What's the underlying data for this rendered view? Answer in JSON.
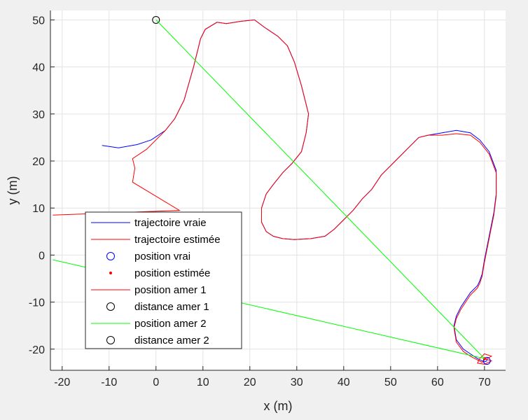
{
  "chart_data": {
    "type": "line",
    "title": "",
    "xlabel": "x (m)",
    "ylabel": "y (m)",
    "xlim": [
      -22.5,
      74.5
    ],
    "ylim": [
      -24.5,
      52
    ],
    "xticks": [
      -20,
      -10,
      0,
      10,
      20,
      30,
      40,
      50,
      60,
      70
    ],
    "yticks": [
      -20,
      -10,
      0,
      10,
      20,
      30,
      40,
      50
    ],
    "grid": true,
    "legend_position": "bottom-left",
    "colors": {
      "true_trajectory": "#0000ff",
      "estimated_trajectory": "#ff0000",
      "landmark_line": "#00ff00",
      "landmark_marker": "#000000",
      "grid": "#e3e3e3",
      "axes_background": "#ffffff",
      "figure_background": "#f0f0f0"
    },
    "series": [
      {
        "name": "trajectoire vraie",
        "kind": "line",
        "color": "#0000ff",
        "x": [
          -11.5,
          -8,
          -4,
          -1,
          2,
          4,
          6,
          7,
          8,
          9,
          9.5,
          10.5,
          13,
          15,
          18,
          21,
          23,
          26,
          28,
          29.5,
          31,
          32.5,
          32,
          31,
          29,
          27,
          25,
          23.5,
          22.5,
          22.5,
          23.5,
          25,
          27,
          29.5,
          33,
          36,
          38,
          40,
          42,
          44,
          46,
          48,
          51,
          54,
          56,
          58,
          61,
          64,
          67,
          69,
          71,
          72.5,
          72.5,
          72,
          71,
          70,
          69.5,
          69,
          68.5,
          67,
          65,
          64,
          63.5,
          64,
          65.5,
          67,
          68.5,
          69.5,
          70,
          70.5,
          70.5
        ],
        "y": [
          23.3,
          22.8,
          23.5,
          24.5,
          26.5,
          29,
          33,
          36.5,
          40,
          44,
          46,
          48,
          49.5,
          49.2,
          49.7,
          50,
          48.5,
          46.5,
          44.5,
          41,
          36,
          30,
          26,
          22,
          19.5,
          17.5,
          15,
          13,
          10,
          7,
          5,
          4,
          3.5,
          3.3,
          3.5,
          4,
          5.5,
          7.5,
          9.5,
          12,
          14,
          17,
          20,
          23,
          25,
          25.5,
          26,
          26.5,
          26,
          24.5,
          22,
          18,
          13,
          9,
          4,
          -1,
          -4,
          -5.5,
          -6.5,
          -8,
          -11,
          -13,
          -15,
          -18,
          -20,
          -21,
          -22,
          -22.5,
          -22.7,
          -22.5,
          -22
        ]
      },
      {
        "name": "trajectoire estimée",
        "kind": "line",
        "color": "#ff0000",
        "x": [
          -22,
          5,
          -5,
          -4.5,
          -5,
          -2,
          2,
          4,
          6,
          7,
          8,
          9,
          9.5,
          10.5,
          13,
          15,
          18,
          21,
          23,
          26,
          28,
          29.5,
          31,
          32.5,
          32,
          31,
          29,
          27,
          25,
          23.5,
          22.5,
          22.5,
          23.5,
          25,
          27,
          29.5,
          33,
          36,
          38,
          40,
          42,
          44,
          46,
          48,
          51,
          54,
          56,
          58,
          61,
          64,
          67,
          69,
          71,
          72.5,
          72.5,
          72,
          71,
          70,
          69.5,
          69,
          68.5,
          67,
          65,
          64,
          63.5,
          64,
          65.5,
          67,
          68.5,
          69.5,
          70,
          71.5,
          70,
          69,
          68.5,
          70,
          71.5,
          70
        ],
        "y": [
          8.5,
          9.5,
          15.5,
          18.5,
          20.5,
          22.5,
          26.5,
          29,
          33,
          36.5,
          40,
          44,
          46,
          48,
          49.5,
          49.2,
          49.7,
          50,
          48.5,
          46.5,
          44.5,
          41,
          36,
          30,
          26,
          22,
          19.5,
          17.5,
          15,
          13,
          10,
          7,
          5,
          4,
          3.5,
          3.3,
          3.5,
          4,
          5.5,
          7.5,
          9.5,
          12,
          14,
          17,
          20,
          23,
          25,
          25.5,
          25.5,
          25.8,
          25.5,
          24,
          21.5,
          17.5,
          12.5,
          8.5,
          3.5,
          -1.5,
          -4.5,
          -6,
          -7,
          -8.5,
          -11.5,
          -13.5,
          -15.5,
          -18.5,
          -20.5,
          -21.5,
          -22.3,
          -22.8,
          -22.3,
          -21.5,
          -21,
          -22,
          -23,
          -23.2,
          -22.5,
          -22
        ]
      },
      {
        "name": "position vrai",
        "kind": "marker",
        "marker": "circle-open",
        "color": "#0000ff",
        "x": [
          70.5
        ],
        "y": [
          -22.5
        ]
      },
      {
        "name": "position estimée",
        "kind": "marker",
        "marker": "dot",
        "color": "#ff0000",
        "x": [
          70
        ],
        "y": [
          -22
        ]
      },
      {
        "name": "position amer 1",
        "kind": "line",
        "color": "#ff0000",
        "x": [],
        "y": []
      },
      {
        "name": "distance amer 1",
        "kind": "marker",
        "marker": "circle-open",
        "color": "#000000",
        "x": [
          0
        ],
        "y": [
          50
        ]
      },
      {
        "name": "position amer 2",
        "kind": "line",
        "color": "#00ff00",
        "segments": [
          {
            "x": [
              0,
              70
            ],
            "y": [
              50,
              -22
            ]
          },
          {
            "x": [
              -22,
              70
            ],
            "y": [
              -1,
              -22
            ]
          }
        ]
      },
      {
        "name": "distance amer 2",
        "kind": "marker",
        "marker": "circle-open",
        "color": "#000000",
        "x": [],
        "y": []
      }
    ],
    "legend": [
      {
        "label": "trajectoire vraie",
        "style": "line",
        "color": "#0000ff"
      },
      {
        "label": "trajectoire estimée",
        "style": "line",
        "color": "#ff0000"
      },
      {
        "label": "position vrai",
        "style": "circle",
        "color": "#0000ff"
      },
      {
        "label": "position estimée",
        "style": "dot",
        "color": "#ff0000"
      },
      {
        "label": "position amer 1",
        "style": "line",
        "color": "#ff0000"
      },
      {
        "label": "distance amer 1",
        "style": "circle",
        "color": "#000000"
      },
      {
        "label": "position amer 2",
        "style": "line",
        "color": "#00ff00"
      },
      {
        "label": "distance amer 2",
        "style": "circle",
        "color": "#000000"
      }
    ]
  }
}
